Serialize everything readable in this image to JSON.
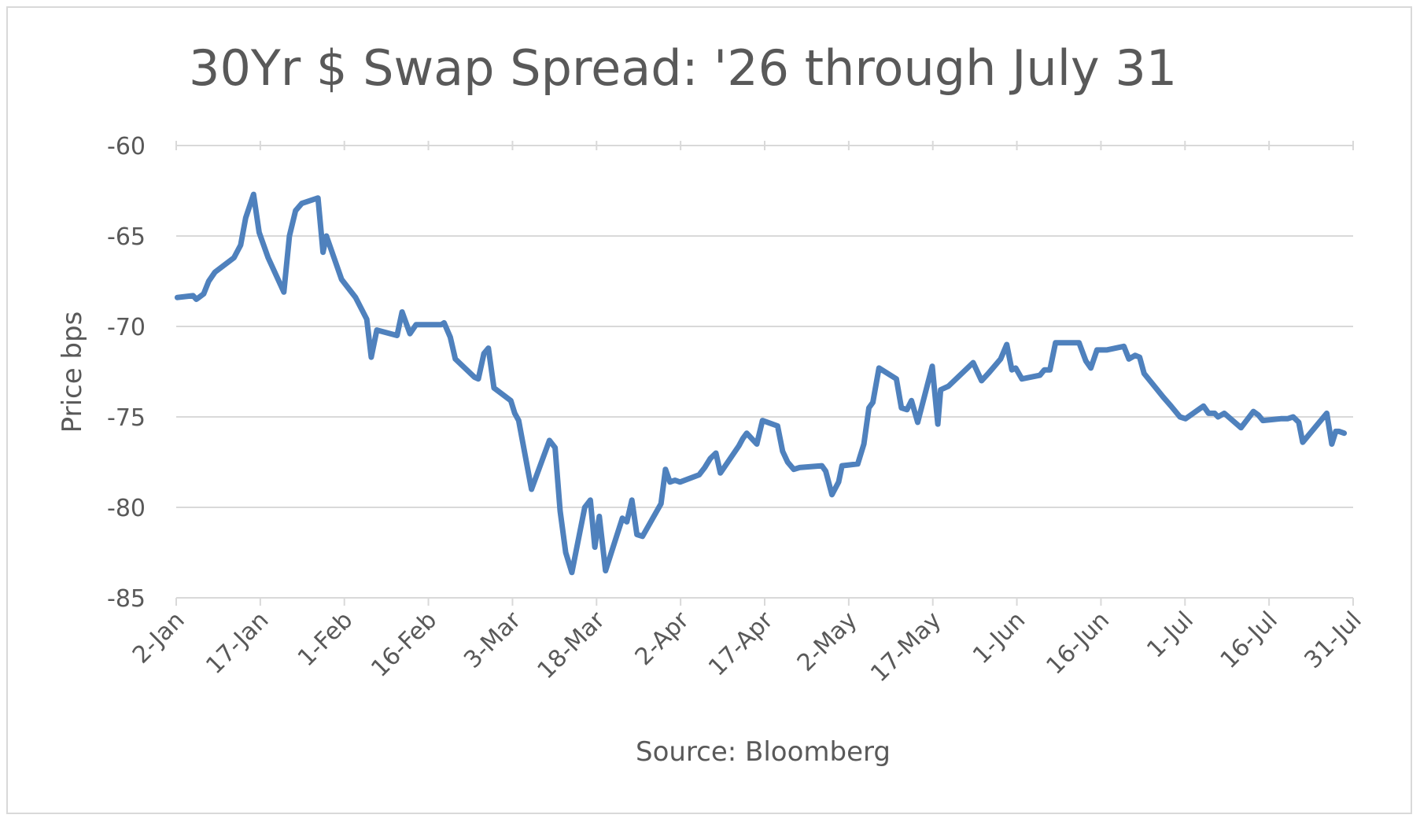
{
  "chart_data": {
    "type": "line",
    "title": "30Yr $ Swap Spread: '26 through July 31",
    "xlabel": "Source: Bloomberg",
    "ylabel": "Price bps",
    "ylim": [
      -85,
      -60
    ],
    "yticks": [
      -60,
      -65,
      -70,
      -75,
      -80,
      -85
    ],
    "xticks": [
      "2-Jan",
      "17-Jan",
      "1-Feb",
      "16-Feb",
      "3-Mar",
      "18-Mar",
      "2-Apr",
      "17-Apr",
      "2-May",
      "17-May",
      "1-Jun",
      "16-Jun",
      "1-Jul",
      "16-Jul",
      "31-Jul"
    ],
    "grid": "horizontal",
    "legend": "none",
    "line_color": "#4f81bd",
    "series": [
      {
        "values": [
          [
            0.2,
            -68.4
          ],
          [
            3.0,
            -68.3
          ],
          [
            3.6,
            -68.5
          ],
          [
            4.9,
            -68.2
          ],
          [
            5.8,
            -67.5
          ],
          [
            6.9,
            -67.0
          ],
          [
            10.3,
            -66.2
          ],
          [
            11.5,
            -65.5
          ],
          [
            12.4,
            -64.0
          ],
          [
            13.8,
            -62.7
          ],
          [
            14.8,
            -64.8
          ],
          [
            16.4,
            -66.2
          ],
          [
            19.2,
            -68.1
          ],
          [
            20.2,
            -65.0
          ],
          [
            21.3,
            -63.6
          ],
          [
            22.4,
            -63.2
          ],
          [
            25.3,
            -62.9
          ],
          [
            26.2,
            -65.9
          ],
          [
            26.8,
            -65.0
          ],
          [
            29.5,
            -67.4
          ],
          [
            32.0,
            -68.4
          ],
          [
            34.0,
            -69.6
          ],
          [
            34.8,
            -71.7
          ],
          [
            35.8,
            -70.2
          ],
          [
            39.4,
            -70.5
          ],
          [
            40.3,
            -69.2
          ],
          [
            41.7,
            -70.4
          ],
          [
            42.8,
            -69.9
          ],
          [
            47.3,
            -69.9
          ],
          [
            47.8,
            -69.8
          ],
          [
            48.9,
            -70.6
          ],
          [
            49.8,
            -71.8
          ],
          [
            53.2,
            -72.8
          ],
          [
            53.9,
            -72.9
          ],
          [
            54.9,
            -71.5
          ],
          [
            55.7,
            -71.2
          ],
          [
            56.7,
            -73.4
          ],
          [
            59.7,
            -74.1
          ],
          [
            60.4,
            -74.8
          ],
          [
            61.1,
            -75.2
          ],
          [
            63.4,
            -79.0
          ],
          [
            66.6,
            -76.3
          ],
          [
            67.6,
            -76.7
          ],
          [
            68.5,
            -80.2
          ],
          [
            69.5,
            -82.5
          ],
          [
            70.6,
            -83.6
          ],
          [
            72.9,
            -80.0
          ],
          [
            73.9,
            -79.6
          ],
          [
            74.7,
            -82.2
          ],
          [
            75.5,
            -80.5
          ],
          [
            76.6,
            -83.5
          ],
          [
            79.6,
            -80.6
          ],
          [
            80.4,
            -80.8
          ],
          [
            81.3,
            -79.6
          ],
          [
            82.2,
            -81.5
          ],
          [
            83.2,
            -81.6
          ],
          [
            86.5,
            -79.8
          ],
          [
            87.3,
            -77.9
          ],
          [
            88.1,
            -78.6
          ],
          [
            89.0,
            -78.5
          ],
          [
            89.9,
            -78.6
          ],
          [
            93.3,
            -78.2
          ],
          [
            94.3,
            -77.8
          ],
          [
            95.3,
            -77.3
          ],
          [
            96.3,
            -77.0
          ],
          [
            97.1,
            -78.1
          ],
          [
            100.4,
            -76.6
          ],
          [
            101.1,
            -76.2
          ],
          [
            101.8,
            -75.9
          ],
          [
            103.6,
            -76.5
          ],
          [
            104.6,
            -75.2
          ],
          [
            107.3,
            -75.5
          ],
          [
            108.2,
            -76.9
          ],
          [
            109.1,
            -77.5
          ],
          [
            110.2,
            -77.9
          ],
          [
            111.2,
            -77.8
          ],
          [
            115.2,
            -77.7
          ],
          [
            115.9,
            -78.0
          ],
          [
            117.0,
            -79.3
          ],
          [
            118.2,
            -78.6
          ],
          [
            118.8,
            -77.7
          ],
          [
            121.6,
            -77.6
          ],
          [
            122.7,
            -76.5
          ],
          [
            123.6,
            -74.5
          ],
          [
            124.3,
            -74.2
          ],
          [
            125.4,
            -72.3
          ],
          [
            128.5,
            -72.9
          ],
          [
            129.4,
            -74.5
          ],
          [
            130.4,
            -74.6
          ],
          [
            131.2,
            -74.1
          ],
          [
            132.3,
            -75.3
          ],
          [
            134.9,
            -72.2
          ],
          [
            135.9,
            -75.4
          ],
          [
            136.4,
            -73.5
          ],
          [
            137.8,
            -73.3
          ],
          [
            142.2,
            -72.0
          ],
          [
            143.7,
            -73.0
          ],
          [
            144.9,
            -72.6
          ],
          [
            147.1,
            -71.8
          ],
          [
            148.2,
            -71.0
          ],
          [
            149.1,
            -72.4
          ],
          [
            149.8,
            -72.3
          ],
          [
            150.9,
            -72.9
          ],
          [
            154.1,
            -72.7
          ],
          [
            154.9,
            -72.4
          ],
          [
            155.9,
            -72.4
          ],
          [
            156.9,
            -70.9
          ],
          [
            161.1,
            -70.9
          ],
          [
            162.3,
            -71.9
          ],
          [
            163.2,
            -72.3
          ],
          [
            164.3,
            -71.3
          ],
          [
            166.0,
            -71.3
          ],
          [
            169.1,
            -71.1
          ],
          [
            170.0,
            -71.8
          ],
          [
            171.1,
            -71.6
          ],
          [
            171.9,
            -71.7
          ],
          [
            172.7,
            -72.6
          ],
          [
            174.8,
            -73.4
          ],
          [
            176.1,
            -73.9
          ],
          [
            177.5,
            -74.4
          ],
          [
            179.1,
            -75.0
          ],
          [
            180.1,
            -75.1
          ],
          [
            183.3,
            -74.4
          ],
          [
            184.2,
            -74.8
          ],
          [
            185.3,
            -74.8
          ],
          [
            185.9,
            -75.0
          ],
          [
            187.0,
            -74.8
          ],
          [
            190.0,
            -75.6
          ],
          [
            192.2,
            -74.7
          ],
          [
            193.1,
            -74.9
          ],
          [
            193.9,
            -75.2
          ],
          [
            197.1,
            -75.1
          ],
          [
            198.3,
            -75.1
          ],
          [
            199.3,
            -75.0
          ],
          [
            200.3,
            -75.3
          ],
          [
            201.0,
            -76.4
          ],
          [
            205.3,
            -74.8
          ],
          [
            206.2,
            -76.5
          ],
          [
            206.9,
            -75.8
          ],
          [
            207.5,
            -75.8
          ],
          [
            208.4,
            -75.9
          ]
        ]
      }
    ]
  }
}
